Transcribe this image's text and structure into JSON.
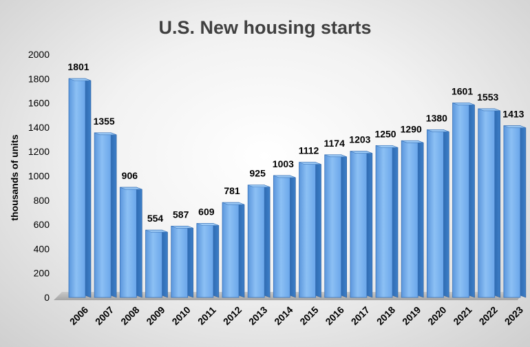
{
  "chart_data": {
    "type": "bar",
    "title": "U.S. New housing starts",
    "xlabel": "",
    "ylabel": "thousands of units",
    "ylim": [
      0,
      2000
    ],
    "yticks": [
      0,
      200,
      400,
      600,
      800,
      1000,
      1200,
      1400,
      1600,
      1800,
      2000
    ],
    "grid": false,
    "legend": "none",
    "categories": [
      "2006",
      "2007",
      "2008",
      "2009",
      "2010",
      "2011",
      "2012",
      "2013",
      "2014",
      "2015",
      "2016",
      "2017",
      "2018",
      "2019",
      "2020",
      "2021",
      "2022",
      "2023"
    ],
    "values": [
      1801,
      1355,
      906,
      554,
      587,
      609,
      781,
      925,
      1003,
      1112,
      1174,
      1203,
      1250,
      1290,
      1380,
      1601,
      1553,
      1413
    ],
    "data_labels": [
      "1801",
      "1355",
      "906",
      "554",
      "587",
      "609",
      "781",
      "925",
      "1003",
      "1112",
      "1174",
      "1203",
      "1250",
      "1290",
      "1380",
      "1601",
      "1553",
      "1413"
    ],
    "bar_color": "#6fa8e8"
  }
}
